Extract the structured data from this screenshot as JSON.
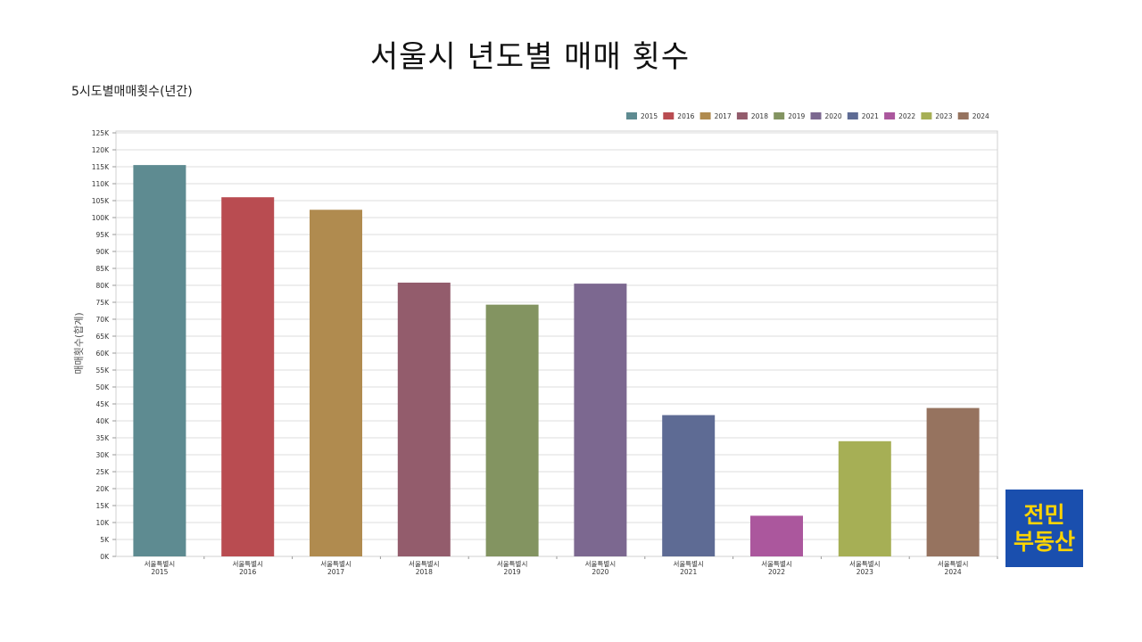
{
  "slide": {
    "title": "서울시 년도별 매매 횟수"
  },
  "chart_data": {
    "type": "bar",
    "subtitle": "5시도별매매횟수(년간)",
    "ylabel": "매매횟수(합계)",
    "ylim": [
      0,
      125000
    ],
    "yticks": [
      {
        "value": 0,
        "label": "0K"
      },
      {
        "value": 5000,
        "label": "5K"
      },
      {
        "value": 10000,
        "label": "10K"
      },
      {
        "value": 15000,
        "label": "15K"
      },
      {
        "value": 20000,
        "label": "20K"
      },
      {
        "value": 25000,
        "label": "25K"
      },
      {
        "value": 30000,
        "label": "30K"
      },
      {
        "value": 35000,
        "label": "35K"
      },
      {
        "value": 40000,
        "label": "40K"
      },
      {
        "value": 45000,
        "label": "45K"
      },
      {
        "value": 50000,
        "label": "50K"
      },
      {
        "value": 55000,
        "label": "55K"
      },
      {
        "value": 60000,
        "label": "60K"
      },
      {
        "value": 65000,
        "label": "65K"
      },
      {
        "value": 70000,
        "label": "70K"
      },
      {
        "value": 75000,
        "label": "75K"
      },
      {
        "value": 80000,
        "label": "80K"
      },
      {
        "value": 85000,
        "label": "85K"
      },
      {
        "value": 90000,
        "label": "90K"
      },
      {
        "value": 95000,
        "label": "95K"
      },
      {
        "value": 100000,
        "label": "100K"
      },
      {
        "value": 105000,
        "label": "105K"
      },
      {
        "value": 110000,
        "label": "110K"
      },
      {
        "value": 115000,
        "label": "115K"
      },
      {
        "value": 120000,
        "label": "120K"
      },
      {
        "value": 125000,
        "label": "125K"
      }
    ],
    "grid": true,
    "legend_position": "top-right",
    "category_label": "서울특별시",
    "categories": [
      "2015",
      "2016",
      "2017",
      "2018",
      "2019",
      "2020",
      "2021",
      "2022",
      "2023",
      "2024"
    ],
    "values": [
      115500,
      106000,
      102300,
      80800,
      74300,
      80500,
      41700,
      12000,
      34000,
      43800
    ],
    "colors": [
      "#5e8b91",
      "#b94c51",
      "#b08b4f",
      "#935c6c",
      "#839461",
      "#7c6890",
      "#5e6b94",
      "#ab579d",
      "#a6af55",
      "#96735f"
    ],
    "series": [
      {
        "name": "2015",
        "color": "#5e8b91"
      },
      {
        "name": "2016",
        "color": "#b94c51"
      },
      {
        "name": "2017",
        "color": "#b08b4f"
      },
      {
        "name": "2018",
        "color": "#935c6c"
      },
      {
        "name": "2019",
        "color": "#839461"
      },
      {
        "name": "2020",
        "color": "#7c6890"
      },
      {
        "name": "2021",
        "color": "#5e6b94"
      },
      {
        "name": "2022",
        "color": "#ab579d"
      },
      {
        "name": "2023",
        "color": "#a6af55"
      },
      {
        "name": "2024",
        "color": "#96735f"
      }
    ]
  },
  "logo": {
    "line1": "전민",
    "line2": "부동산",
    "bg_color": "#1a4fae",
    "text_color": "#ffd400"
  }
}
